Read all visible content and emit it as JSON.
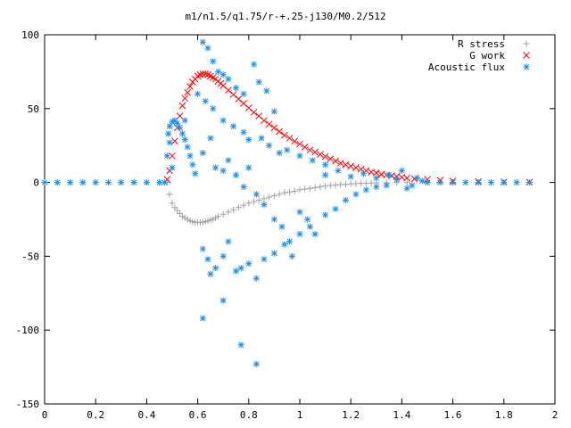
{
  "chart_data": {
    "type": "scatter",
    "title": "m1/n1.5/q1.75/r-+.25-j130/M0.2/512",
    "xlabel": "",
    "ylabel": "",
    "xlim": [
      0,
      2
    ],
    "ylim": [
      -150,
      100
    ],
    "xticks": [
      0,
      0.2,
      0.4,
      0.6,
      0.8,
      1,
      1.2,
      1.4,
      1.6,
      1.8,
      2
    ],
    "xtick_labels": [
      "0",
      "0.2",
      "0.4",
      "0.6",
      "0.8",
      "1",
      "1.2",
      "1.4",
      "1.6",
      "1.8",
      "2"
    ],
    "yticks": [
      -150,
      -100,
      -50,
      0,
      50,
      100
    ],
    "ytick_labels": [
      "-150",
      "-100",
      "-50",
      "0",
      "50",
      "100"
    ],
    "grid": false,
    "legend_position": "top-right",
    "series": [
      {
        "name": "R stress",
        "marker": "+",
        "color": "#a0a0a0",
        "points": [
          [
            0.0,
            0
          ],
          [
            0.05,
            0
          ],
          [
            0.1,
            0
          ],
          [
            0.15,
            0
          ],
          [
            0.2,
            0
          ],
          [
            0.25,
            0
          ],
          [
            0.3,
            0
          ],
          [
            0.35,
            0
          ],
          [
            0.4,
            0
          ],
          [
            0.45,
            0
          ],
          [
            0.48,
            0
          ],
          [
            0.49,
            -8
          ],
          [
            0.5,
            -14
          ],
          [
            0.51,
            -17
          ],
          [
            0.52,
            -19
          ],
          [
            0.53,
            -21
          ],
          [
            0.54,
            -23
          ],
          [
            0.55,
            -24
          ],
          [
            0.56,
            -25
          ],
          [
            0.57,
            -26
          ],
          [
            0.58,
            -26.5
          ],
          [
            0.59,
            -27
          ],
          [
            0.6,
            -27
          ],
          [
            0.61,
            -27
          ],
          [
            0.62,
            -27
          ],
          [
            0.63,
            -26.5
          ],
          [
            0.64,
            -26
          ],
          [
            0.65,
            -25.5
          ],
          [
            0.66,
            -25
          ],
          [
            0.67,
            -24
          ],
          [
            0.68,
            -23
          ],
          [
            0.7,
            -21.5
          ],
          [
            0.72,
            -20
          ],
          [
            0.74,
            -18.5
          ],
          [
            0.76,
            -17
          ],
          [
            0.78,
            -15.5
          ],
          [
            0.8,
            -14
          ],
          [
            0.82,
            -13
          ],
          [
            0.84,
            -12
          ],
          [
            0.86,
            -11
          ],
          [
            0.88,
            -10
          ],
          [
            0.9,
            -9
          ],
          [
            0.92,
            -8
          ],
          [
            0.94,
            -7
          ],
          [
            0.96,
            -6.5
          ],
          [
            0.98,
            -6
          ],
          [
            1.0,
            -5
          ],
          [
            1.02,
            -4.5
          ],
          [
            1.04,
            -4
          ],
          [
            1.06,
            -3.5
          ],
          [
            1.08,
            -3
          ],
          [
            1.1,
            -2.5
          ],
          [
            1.12,
            -2
          ],
          [
            1.14,
            -1.8
          ],
          [
            1.16,
            -1.5
          ],
          [
            1.18,
            -1.3
          ],
          [
            1.2,
            -1
          ],
          [
            1.22,
            -0.8
          ],
          [
            1.24,
            -0.6
          ],
          [
            1.26,
            -0.5
          ],
          [
            1.28,
            -0.4
          ],
          [
            1.3,
            -0.3
          ],
          [
            1.34,
            -0.2
          ],
          [
            1.38,
            -0.1
          ],
          [
            1.42,
            0
          ],
          [
            1.5,
            0
          ],
          [
            1.6,
            0
          ],
          [
            1.7,
            0
          ],
          [
            1.8,
            0
          ],
          [
            1.9,
            0
          ]
        ]
      },
      {
        "name": "G work",
        "marker": "x",
        "color": "#ff0000",
        "points": [
          [
            0.48,
            2
          ],
          [
            0.49,
            8
          ],
          [
            0.5,
            18
          ],
          [
            0.51,
            28
          ],
          [
            0.52,
            37
          ],
          [
            0.53,
            45
          ],
          [
            0.54,
            52
          ],
          [
            0.55,
            57
          ],
          [
            0.56,
            61
          ],
          [
            0.57,
            65
          ],
          [
            0.58,
            68
          ],
          [
            0.59,
            70
          ],
          [
            0.6,
            72
          ],
          [
            0.61,
            73
          ],
          [
            0.62,
            73.5
          ],
          [
            0.63,
            73.5
          ],
          [
            0.64,
            73
          ],
          [
            0.65,
            72
          ],
          [
            0.66,
            71
          ],
          [
            0.67,
            70
          ],
          [
            0.68,
            68.5
          ],
          [
            0.69,
            67
          ],
          [
            0.7,
            65.5
          ],
          [
            0.72,
            62.5
          ],
          [
            0.74,
            59.5
          ],
          [
            0.76,
            56.5
          ],
          [
            0.78,
            53.5
          ],
          [
            0.8,
            50.5
          ],
          [
            0.82,
            47.5
          ],
          [
            0.84,
            45
          ],
          [
            0.86,
            42
          ],
          [
            0.88,
            39.5
          ],
          [
            0.9,
            37
          ],
          [
            0.92,
            34.5
          ],
          [
            0.94,
            32
          ],
          [
            0.96,
            30
          ],
          [
            0.98,
            28
          ],
          [
            1.0,
            26
          ],
          [
            1.02,
            24
          ],
          [
            1.04,
            22
          ],
          [
            1.06,
            20.5
          ],
          [
            1.08,
            19
          ],
          [
            1.1,
            17.5
          ],
          [
            1.12,
            16
          ],
          [
            1.14,
            14.5
          ],
          [
            1.16,
            13
          ],
          [
            1.18,
            12
          ],
          [
            1.2,
            11
          ],
          [
            1.22,
            10
          ],
          [
            1.24,
            9
          ],
          [
            1.26,
            8
          ],
          [
            1.28,
            7
          ],
          [
            1.3,
            6.5
          ],
          [
            1.32,
            5.5
          ],
          [
            1.34,
            5
          ],
          [
            1.36,
            4.5
          ],
          [
            1.38,
            4
          ],
          [
            1.4,
            3.5
          ],
          [
            1.42,
            3
          ],
          [
            1.45,
            2.5
          ],
          [
            1.5,
            2
          ],
          [
            1.55,
            1.5
          ],
          [
            1.6,
            1
          ],
          [
            1.7,
            0.5
          ],
          [
            1.8,
            0.3
          ],
          [
            1.9,
            0.2
          ]
        ]
      },
      {
        "name": "Acoustic flux",
        "marker": "*",
        "color": "#1f8fe6",
        "points": [
          [
            0.0,
            0
          ],
          [
            0.05,
            0
          ],
          [
            0.1,
            0
          ],
          [
            0.15,
            0
          ],
          [
            0.2,
            0
          ],
          [
            0.25,
            0
          ],
          [
            0.3,
            0
          ],
          [
            0.35,
            0
          ],
          [
            0.4,
            0
          ],
          [
            0.45,
            0
          ],
          [
            0.47,
            0
          ],
          [
            0.48,
            18
          ],
          [
            0.485,
            33
          ],
          [
            0.49,
            38
          ],
          [
            0.5,
            41
          ],
          [
            0.51,
            42
          ],
          [
            0.52,
            40
          ],
          [
            0.53,
            37
          ],
          [
            0.54,
            33
          ],
          [
            0.55,
            29
          ],
          [
            0.56,
            24
          ],
          [
            0.57,
            18
          ],
          [
            0.58,
            12
          ],
          [
            0.59,
            6
          ],
          [
            0.5,
            10
          ],
          [
            0.49,
            27
          ],
          [
            0.55,
            42
          ],
          [
            0.62,
            95
          ],
          [
            0.64,
            91
          ],
          [
            0.66,
            82
          ],
          [
            0.68,
            75
          ],
          [
            0.7,
            73
          ],
          [
            0.72,
            70
          ],
          [
            0.75,
            64
          ],
          [
            0.78,
            60
          ],
          [
            0.82,
            80
          ],
          [
            0.84,
            68
          ],
          [
            0.87,
            62
          ],
          [
            0.9,
            48
          ],
          [
            0.6,
            60
          ],
          [
            0.63,
            55
          ],
          [
            0.66,
            50
          ],
          [
            0.7,
            42
          ],
          [
            0.74,
            38
          ],
          [
            0.78,
            34
          ],
          [
            0.8,
            29
          ],
          [
            0.85,
            30
          ],
          [
            0.88,
            25
          ],
          [
            0.92,
            20
          ],
          [
            0.95,
            22
          ],
          [
            1.0,
            18
          ],
          [
            1.05,
            15
          ],
          [
            1.1,
            12
          ],
          [
            0.62,
            20
          ],
          [
            0.65,
            30
          ],
          [
            0.67,
            10
          ],
          [
            0.7,
            8
          ],
          [
            0.72,
            15
          ],
          [
            0.75,
            5
          ],
          [
            0.78,
            -3
          ],
          [
            0.8,
            10
          ],
          [
            0.83,
            -8
          ],
          [
            0.86,
            -15
          ],
          [
            0.9,
            -25
          ],
          [
            0.93,
            -30
          ],
          [
            0.96,
            -40
          ],
          [
            1.0,
            -20
          ],
          [
            1.03,
            -25
          ],
          [
            1.06,
            -35
          ],
          [
            1.1,
            -22
          ],
          [
            1.14,
            -18
          ],
          [
            1.18,
            -12
          ],
          [
            1.22,
            -8
          ],
          [
            1.26,
            -5
          ],
          [
            1.3,
            -3
          ],
          [
            1.34,
            -2
          ],
          [
            0.62,
            -45
          ],
          [
            0.64,
            -52
          ],
          [
            0.65,
            -62
          ],
          [
            0.67,
            -58
          ],
          [
            0.7,
            -50
          ],
          [
            0.72,
            -40
          ],
          [
            0.75,
            -60
          ],
          [
            0.77,
            -58
          ],
          [
            0.8,
            -55
          ],
          [
            0.83,
            -65
          ],
          [
            0.86,
            -52
          ],
          [
            0.9,
            -48
          ],
          [
            0.94,
            -42
          ],
          [
            0.97,
            -50
          ],
          [
            1.0,
            -35
          ],
          [
            1.04,
            -30
          ],
          [
            0.62,
            -92
          ],
          [
            0.7,
            -80
          ],
          [
            0.77,
            -110
          ],
          [
            0.83,
            -123
          ],
          [
            1.1,
            5
          ],
          [
            1.15,
            8
          ],
          [
            1.2,
            4
          ],
          [
            1.25,
            6
          ],
          [
            1.3,
            3
          ],
          [
            1.35,
            5
          ],
          [
            1.38,
            2
          ],
          [
            1.4,
            8
          ],
          [
            1.42,
            -4
          ],
          [
            1.44,
            -2
          ],
          [
            1.46,
            3
          ],
          [
            1.48,
            1
          ],
          [
            1.5,
            0
          ],
          [
            1.55,
            0
          ],
          [
            1.6,
            0
          ],
          [
            1.65,
            0
          ],
          [
            1.7,
            0
          ],
          [
            1.75,
            0
          ],
          [
            1.8,
            0
          ],
          [
            1.85,
            0
          ],
          [
            1.9,
            0
          ]
        ]
      }
    ]
  }
}
